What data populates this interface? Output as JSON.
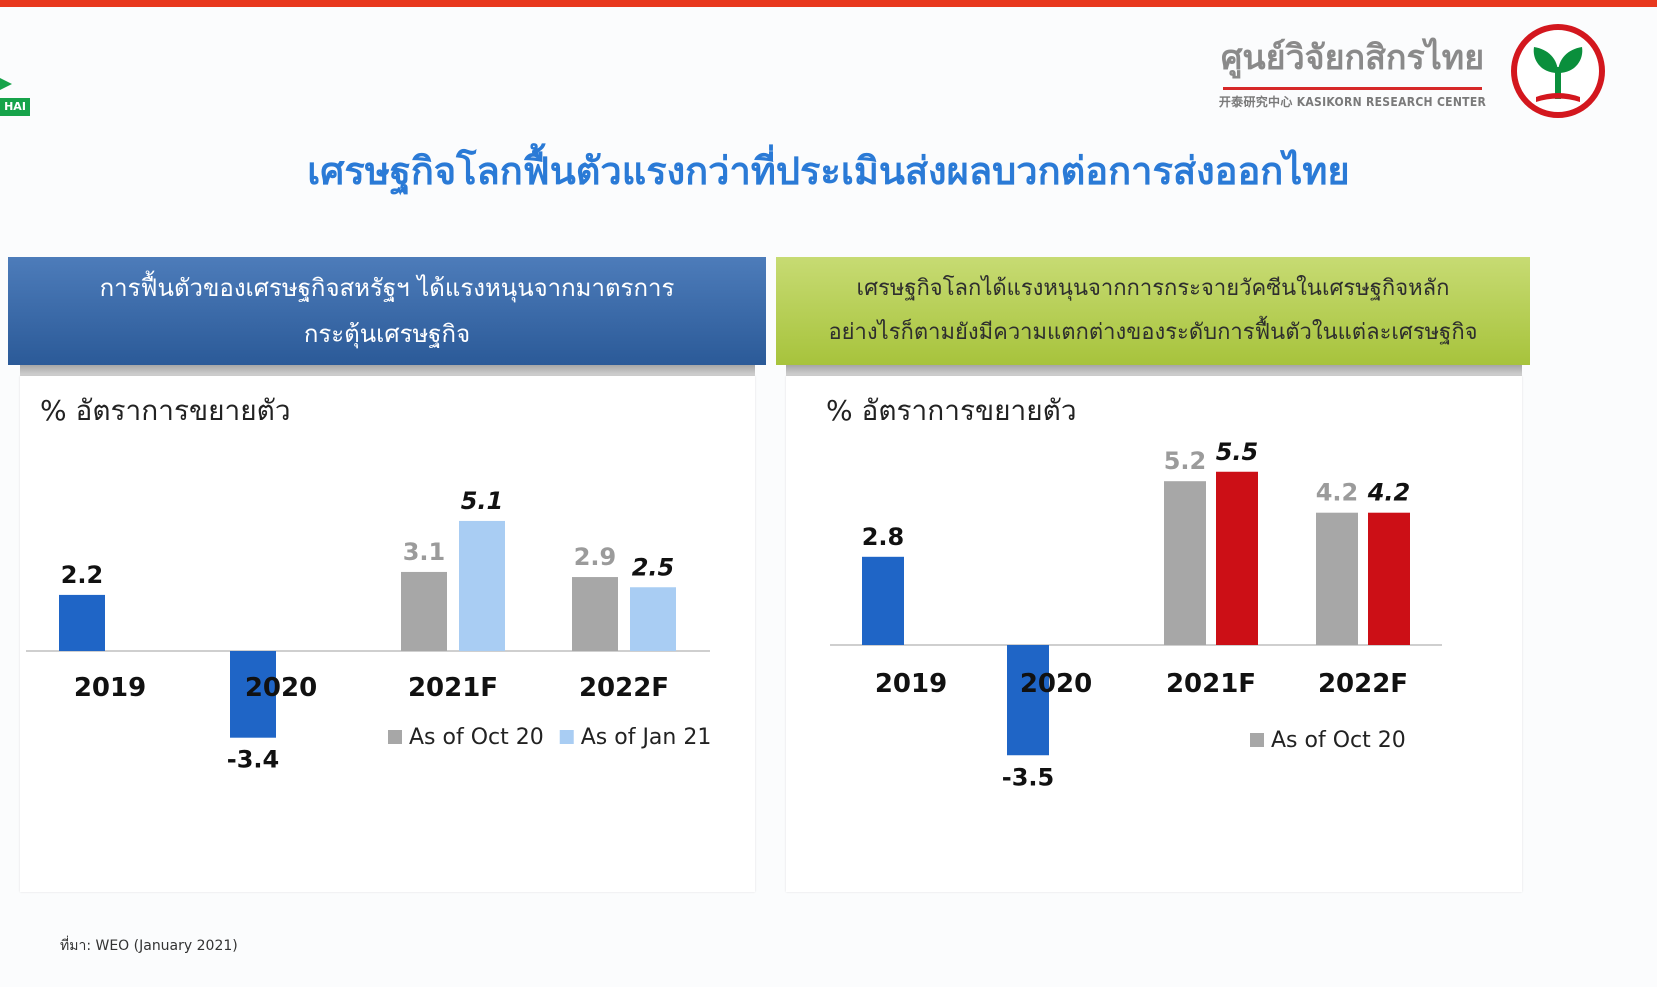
{
  "header": {
    "brand_thai": "ศูนย์วิจัยกสิกรไทย",
    "brand_english": "开泰研究中心 KASIKORN RESEARCH CENTER",
    "left_badge": "HAI",
    "title": "เศรษฐกิจโลกฟื้นตัวแรงกว่าที่ประเมินส่งผลบวกต่อการส่งออกไทย"
  },
  "panels": {
    "left": {
      "line1": "การฟื้นตัวของเศรษฐกิจสหรัฐฯ ได้แรงหนุนจากมาตรการ",
      "line2": "กระตุ้นเศรษฐกิจ"
    },
    "right": {
      "line1": "เศรษฐกิจโลกได้แรงหนุนจากการกระจายวัคซีนในเศรษฐกิจหลัก",
      "line2": "อย่างไรก็ตามยังมีความแตกต่างของระดับการฟื้นตัวในแต่ละเศรษฐกิจ"
    }
  },
  "source": "ที่มา: WEO (January 2021)",
  "colors": {
    "actual": "#1f65c6",
    "oct20": "#a7a7a7",
    "jan21_left": "#a9cdf3",
    "jan21_right": "#cc0f16",
    "axis": "#cfcfcf"
  },
  "chart_data": [
    {
      "type": "bar",
      "ylabel": "% อัตราการขยายตัว",
      "categories": [
        "2019",
        "2020",
        "2021F",
        "2022F"
      ],
      "series": [
        {
          "name": "",
          "values": [
            2.2,
            -3.4,
            null,
            null
          ]
        },
        {
          "name": "As of Oct 20",
          "values": [
            null,
            null,
            3.1,
            2.9
          ]
        },
        {
          "name": "As of Jan 21",
          "values": [
            null,
            null,
            5.1,
            2.5
          ]
        }
      ],
      "ylim": [
        -3.4,
        5.1
      ],
      "grid": false,
      "legend": "bottom-right"
    },
    {
      "type": "bar",
      "ylabel": "% อัตราการขยายตัว",
      "categories": [
        "2019",
        "2020",
        "2021F",
        "2022F"
      ],
      "series": [
        {
          "name": "",
          "values": [
            2.8,
            -3.5,
            null,
            null
          ]
        },
        {
          "name": "As of Oct 20",
          "values": [
            null,
            null,
            5.2,
            4.2
          ]
        },
        {
          "name": "",
          "values": [
            null,
            null,
            5.5,
            4.2
          ]
        }
      ],
      "ylim": [
        -3.5,
        5.5
      ],
      "grid": false,
      "legend": "bottom-right"
    }
  ]
}
